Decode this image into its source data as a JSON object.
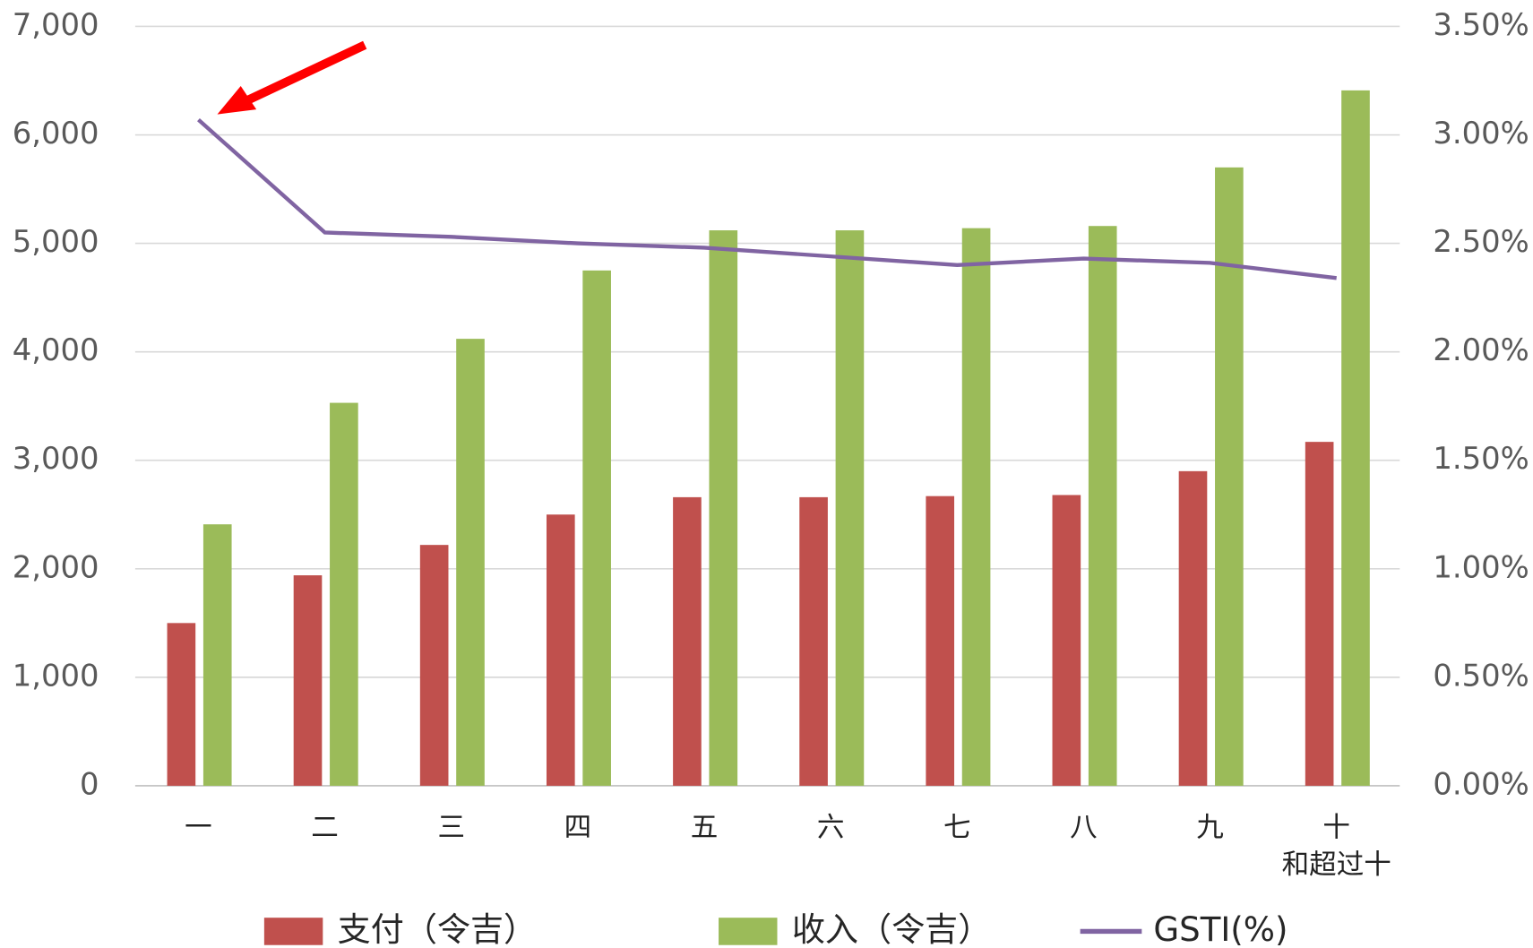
{
  "chart_data": {
    "type": "bar",
    "categories": [
      "一",
      "二",
      "三",
      "四",
      "五",
      "六",
      "七",
      "八",
      "九",
      "十\n和超过十"
    ],
    "series": [
      {
        "name": "支付（令吉）",
        "color": "#c0504d",
        "values": [
          1500,
          1940,
          2220,
          2500,
          2660,
          2660,
          2670,
          2680,
          2900,
          3170
        ]
      },
      {
        "name": "收入（令吉）",
        "color": "#9bbb59",
        "values": [
          2410,
          3530,
          4120,
          4750,
          5120,
          5120,
          5140,
          5160,
          5700,
          6410
        ]
      },
      {
        "name": "GSTI(%)",
        "color": "#8064a2",
        "type": "line",
        "axis": "y2",
        "values": [
          3.07,
          2.55,
          2.53,
          2.5,
          2.48,
          2.44,
          2.4,
          2.43,
          2.41,
          2.34
        ]
      }
    ],
    "ylim": [
      0,
      7000
    ],
    "yticks": [
      0,
      {
        "value": 1000,
        "label": "1,000"
      },
      {
        "value": 2000,
        "label": "2,000"
      },
      {
        "value": 3000,
        "label": "3,000"
      },
      {
        "value": 4000,
        "label": "4,000"
      },
      {
        "value": 5000,
        "label": "5,000"
      },
      {
        "value": 6000,
        "label": "6,000"
      },
      {
        "value": 7000,
        "label": "7,000"
      }
    ],
    "y2lim": [
      0,
      3.5
    ],
    "y2ticks": [
      {
        "value": 0,
        "label": "0.00%"
      },
      {
        "value": 0.5,
        "label": "0.50%"
      },
      {
        "value": 1,
        "label": "1.00%"
      },
      {
        "value": 1.5,
        "label": "1.50%"
      },
      {
        "value": 2,
        "label": "2.00%"
      },
      {
        "value": 2.5,
        "label": "2.50%"
      },
      {
        "value": 3,
        "label": "3.00%"
      },
      {
        "value": 3.5,
        "label": "3.50%"
      }
    ],
    "grid": true,
    "legend": "bottom"
  }
}
